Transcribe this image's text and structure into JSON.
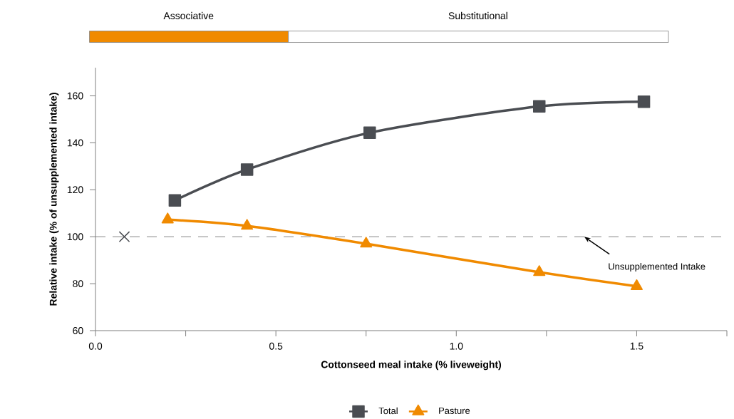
{
  "chart_data": {
    "type": "line",
    "xlabel": "Cottonseed meal intake (% liveweight)",
    "ylabel": "Relative intake (% of unsupplemented intake)",
    "xlim": [
      0,
      1.75
    ],
    "ylim": [
      60,
      172
    ],
    "xticks": [
      {
        "value": 0,
        "label": "0.0"
      },
      {
        "value": 0.25,
        "label": null
      },
      {
        "value": 0.5,
        "label": "0.5"
      },
      {
        "value": 0.75,
        "label": null
      },
      {
        "value": 1.0,
        "label": "1.0"
      },
      {
        "value": 1.25,
        "label": null
      },
      {
        "value": 1.5,
        "label": "1.5"
      },
      {
        "value": 1.75,
        "label": null
      }
    ],
    "yticks": [
      60,
      80,
      100,
      120,
      140,
      160
    ],
    "series": [
      {
        "name": "Total",
        "color": "#4a4d52",
        "marker": "square",
        "x": [
          0.22,
          0.42,
          0.76,
          1.23,
          1.52
        ],
        "values": [
          115.5,
          128.6,
          144.3,
          155.5,
          157.5
        ]
      },
      {
        "name": "Pasture",
        "color": "#f08a00",
        "marker": "triangle",
        "x": [
          0.2,
          0.42,
          0.75,
          1.23,
          1.5
        ],
        "values": [
          107.3,
          104.6,
          97,
          84.9,
          78.9
        ]
      },
      {
        "type": "scatter",
        "color": "#4a4d52",
        "marker": "cross",
        "x": [
          0.08
        ],
        "values": [
          100
        ]
      }
    ],
    "ref_lines": [
      {
        "axis": "y",
        "value": 100,
        "label": "Unsupplemented Intake",
        "color": "#666666",
        "line_style": "dashed"
      }
    ],
    "annotations": [
      "Associative",
      "Substitutional"
    ],
    "legend": "bottom",
    "grid": false
  }
}
